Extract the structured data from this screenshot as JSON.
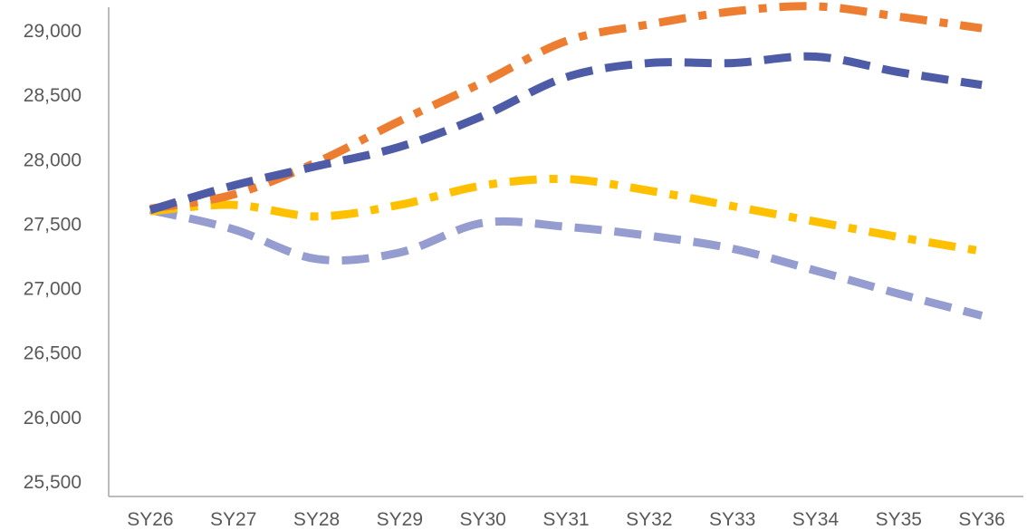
{
  "chart_data": {
    "type": "line",
    "title": "",
    "xlabel": "",
    "ylabel": "",
    "categories": [
      "SY26",
      "SY27",
      "SY28",
      "SY29",
      "SY30",
      "SY31",
      "SY32",
      "SY33",
      "SY34",
      "SY35",
      "SY36"
    ],
    "ylim": [
      25500,
      29000
    ],
    "yticks": [
      25500,
      26000,
      26500,
      27000,
      27500,
      28000,
      28500,
      29000
    ],
    "ytick_labels": [
      "25,500",
      "26,000",
      "26,500",
      "27,000",
      "27,500",
      "28,000",
      "28,500",
      "29,000"
    ],
    "grid": false,
    "legend": "none",
    "series": [
      {
        "values": [
          27610,
          27800,
          27950,
          28100,
          28340,
          28640,
          28750,
          28750,
          28800,
          28680,
          28580
        ],
        "color": "#4e5ba6",
        "dash": "long-dash"
      },
      {
        "values": [
          27620,
          27730,
          27980,
          28300,
          28600,
          28920,
          29050,
          29150,
          29190,
          29110,
          29020
        ],
        "color": "#ed7d31",
        "dash": "dash-dot"
      },
      {
        "values": [
          27600,
          27650,
          27560,
          27650,
          27800,
          27850,
          27760,
          27640,
          27520,
          27400,
          27290
        ],
        "color": "#ffc000",
        "dash": "dash-dot"
      },
      {
        "values": [
          27610,
          27460,
          27230,
          27280,
          27510,
          27480,
          27410,
          27310,
          27140,
          26960,
          26790
        ],
        "color": "#959cd0",
        "dash": "long-dash"
      }
    ]
  }
}
